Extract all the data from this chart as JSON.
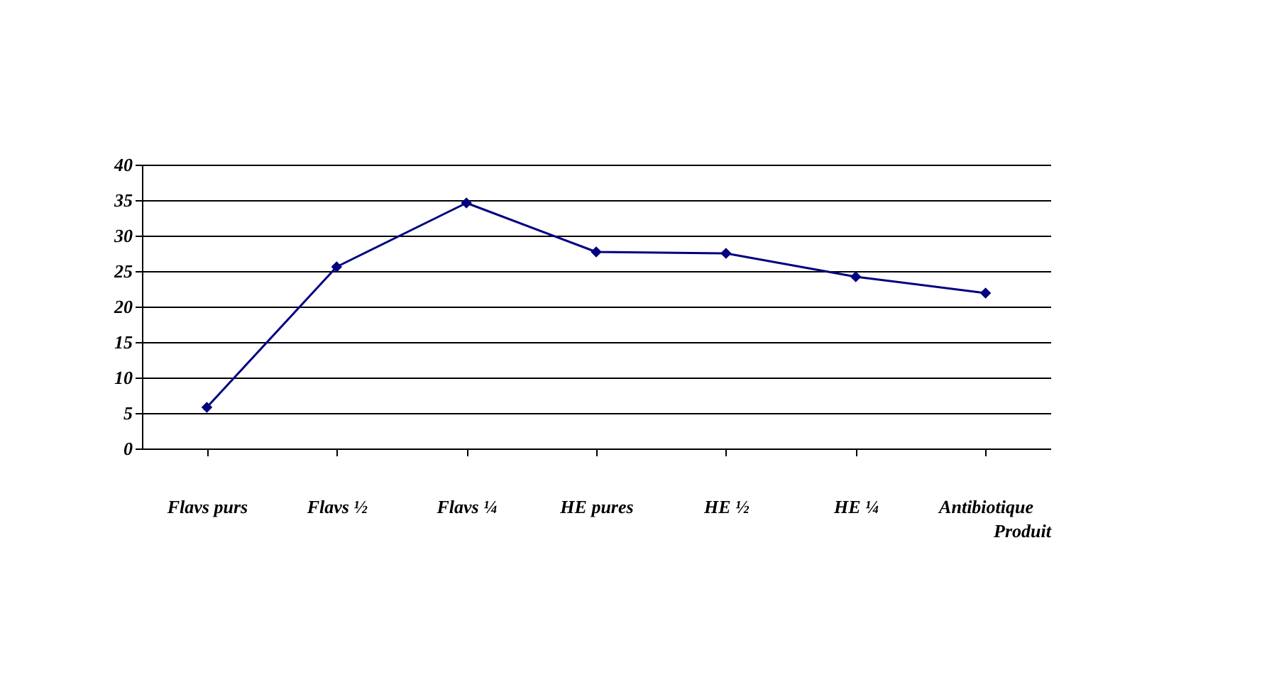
{
  "chart_data": {
    "type": "line",
    "xlabel": "Produit",
    "categories": [
      "Flavs purs",
      "Flavs ½",
      "Flavs ¼",
      "HE pures",
      "HE ½",
      "HE ¼",
      "Antibiotique"
    ],
    "series": [
      {
        "color": "#000080",
        "values": [
          5.8,
          25.6,
          34.6,
          27.7,
          27.5,
          24.2,
          21.9
        ]
      }
    ],
    "ylim": [
      0,
      40
    ],
    "yticks": [
      0,
      5,
      10,
      15,
      20,
      25,
      30,
      35,
      40
    ],
    "grid": "y",
    "legend": false,
    "marker": "diamond",
    "line_style": "solid"
  }
}
